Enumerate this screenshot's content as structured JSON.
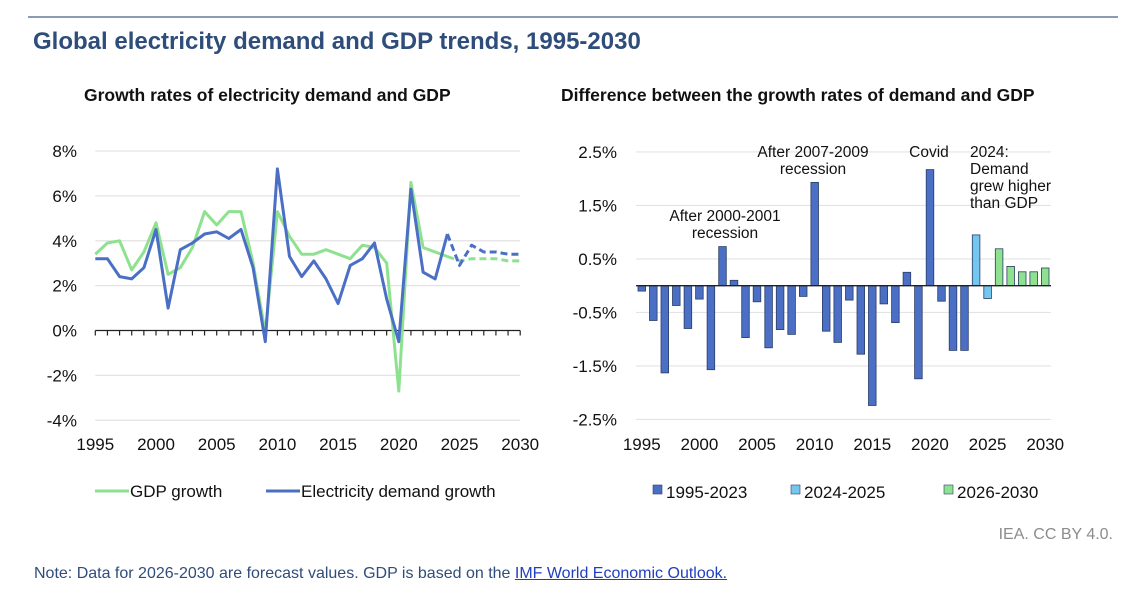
{
  "title": "Global electricity demand and GDP trends, 1995-2030",
  "credit": "IEA. CC BY 4.0.",
  "note": {
    "text": "Note: Data for 2026-2030 are forecast values. GDP is based on the ",
    "link": "IMF World Economic Outlook."
  },
  "colors": {
    "gdp": "#8ee28f",
    "electricity": "#4a6fc4",
    "bar_1995_2023": "#4a6fc4",
    "bar_2024_2025": "#74c6ef",
    "bar_2026_2030": "#8ee28f",
    "title": "#2f4d7a"
  },
  "chart_data": [
    {
      "type": "line",
      "title": "Growth rates of electricity demand and GDP",
      "xlabel": "",
      "ylabel": "",
      "x": [
        1995,
        1996,
        1997,
        1998,
        1999,
        2000,
        2001,
        2002,
        2003,
        2004,
        2005,
        2006,
        2007,
        2008,
        2009,
        2010,
        2011,
        2012,
        2013,
        2014,
        2015,
        2016,
        2017,
        2018,
        2019,
        2020,
        2021,
        2022,
        2023,
        2024,
        2025,
        2026,
        2027,
        2028,
        2029,
        2030
      ],
      "x_ticks": [
        "1995",
        "2000",
        "2005",
        "2010",
        "2015",
        "2020",
        "2025",
        "2030"
      ],
      "x_tick_values": [
        1995,
        2000,
        2005,
        2010,
        2015,
        2020,
        2025,
        2030
      ],
      "xlim": [
        1995,
        2030
      ],
      "ylim": [
        -4,
        8
      ],
      "y_ticks": [
        -4,
        -2,
        0,
        2,
        4,
        6,
        8
      ],
      "y_tick_labels": [
        "-4%",
        "-2%",
        "0%",
        "2%",
        "4%",
        "6%",
        "8%"
      ],
      "grid": true,
      "forecast_start": 2025,
      "legend_position": "bottom",
      "series": [
        {
          "name": "GDP growth",
          "values": [
            3.4,
            3.9,
            4.0,
            2.7,
            3.5,
            4.8,
            2.5,
            2.8,
            3.7,
            5.3,
            4.7,
            5.3,
            5.3,
            3.0,
            -0.1,
            5.3,
            4.2,
            3.4,
            3.4,
            3.6,
            3.4,
            3.2,
            3.8,
            3.7,
            3.0,
            -2.7,
            6.6,
            3.7,
            3.5,
            3.3,
            3.1,
            3.2,
            3.2,
            3.2,
            3.1,
            3.1
          ]
        },
        {
          "name": "Electricity demand growth",
          "values": [
            3.2,
            3.2,
            2.4,
            2.3,
            2.8,
            4.5,
            1.0,
            3.6,
            3.9,
            4.3,
            4.4,
            4.1,
            4.5,
            2.8,
            -0.5,
            7.2,
            3.3,
            2.4,
            3.1,
            2.3,
            1.2,
            2.9,
            3.2,
            3.9,
            1.4,
            -0.5,
            6.3,
            2.6,
            2.3,
            4.3,
            2.9,
            3.8,
            3.5,
            3.5,
            3.4,
            3.4
          ]
        }
      ]
    },
    {
      "type": "bar",
      "title": "Difference between the growth rates of demand and GDP",
      "xlabel": "",
      "ylabel": "",
      "categories": [
        1995,
        1996,
        1997,
        1998,
        1999,
        2000,
        2001,
        2002,
        2003,
        2004,
        2005,
        2006,
        2007,
        2008,
        2009,
        2010,
        2011,
        2012,
        2013,
        2014,
        2015,
        2016,
        2017,
        2018,
        2019,
        2020,
        2021,
        2022,
        2023,
        2024,
        2025,
        2026,
        2027,
        2028,
        2029,
        2030
      ],
      "x_ticks": [
        "1995",
        "2000",
        "2005",
        "2010",
        "2015",
        "2020",
        "2025",
        "2030"
      ],
      "x_tick_values": [
        1995,
        2000,
        2005,
        2010,
        2015,
        2020,
        2025,
        2030
      ],
      "ylim": [
        -2.5,
        2.5
      ],
      "y_ticks": [
        -2.5,
        -1.5,
        -0.5,
        0.5,
        1.5,
        2.5
      ],
      "y_tick_labels": [
        "-2.5%",
        "-1.5%",
        "-0.5%",
        "0.5%",
        "1.5%",
        "2.5%"
      ],
      "grid": true,
      "legend_position": "bottom",
      "values": [
        -0.1,
        -0.65,
        -1.63,
        -0.37,
        -0.8,
        -0.25,
        -1.57,
        0.73,
        0.1,
        -0.97,
        -0.3,
        -1.16,
        -0.82,
        -0.91,
        -0.2,
        1.93,
        -0.85,
        -1.06,
        -0.27,
        -1.28,
        -2.24,
        -0.34,
        -0.69,
        0.25,
        -1.74,
        2.17,
        -0.29,
        -1.21,
        -1.21,
        0.95,
        -0.24,
        0.69,
        0.36,
        0.26,
        0.26,
        0.33
      ],
      "groups": [
        {
          "name": "1995-2023",
          "from": 1995,
          "to": 2023
        },
        {
          "name": "2024-2025",
          "from": 2024,
          "to": 2025
        },
        {
          "name": "2026-2030",
          "from": 2026,
          "to": 2030
        }
      ],
      "annotations": [
        {
          "lines": [
            "After 2000-2001",
            "recession"
          ],
          "year": 2002
        },
        {
          "lines": [
            "After 2007-2009",
            "recession"
          ],
          "year": 2010
        },
        {
          "lines": [
            "Covid"
          ],
          "year": 2020
        },
        {
          "lines": [
            "2024:",
            "Demand",
            "grew higher",
            "than GDP"
          ],
          "year": 2024
        }
      ]
    }
  ]
}
